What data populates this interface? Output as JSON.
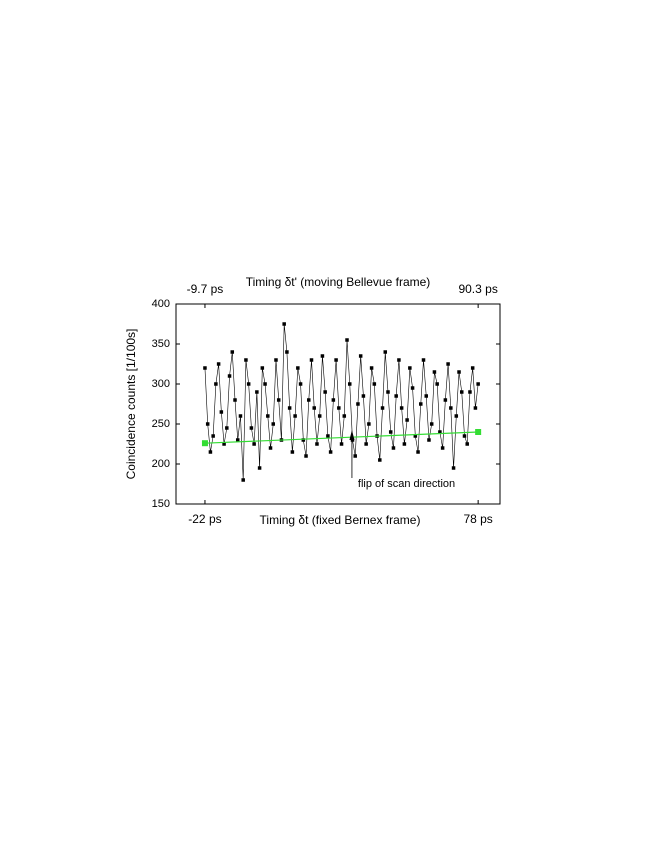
{
  "chart_data": {
    "type": "line",
    "title": "Timing δt' (moving Bellevue frame)",
    "xlabel": "Timing δt (fixed Bernex frame)",
    "ylabel": "Coincidence counts [1/100s]",
    "annotation": "flip of scan direction",
    "annotation_x": 31.8,
    "xlim": [
      -32.6,
      86
    ],
    "xticks": [
      {
        "value": -22,
        "label": "-22 ps"
      },
      {
        "value": 78,
        "label": "78 ps"
      }
    ],
    "x2ticks": [
      {
        "value": -22,
        "label": "-9.7 ps"
      },
      {
        "value": 78,
        "label": "90.3 ps"
      }
    ],
    "ylim": [
      150,
      400
    ],
    "yticks": [
      150,
      200,
      250,
      300,
      350,
      400
    ],
    "series": [
      {
        "color": "#000000",
        "marker": "square",
        "x": [
          -22,
          -21,
          -20,
          -19,
          -18,
          -17,
          -16,
          -15,
          -14,
          -13,
          -12,
          -11,
          -10,
          -9,
          -8,
          -7,
          -6,
          -5,
          -4,
          -3,
          -2,
          -1,
          0,
          1,
          2,
          3,
          4,
          5,
          6,
          7,
          8,
          9,
          10,
          11,
          12,
          13,
          14,
          15,
          16,
          17,
          18,
          19,
          20,
          21,
          22,
          23,
          24,
          25,
          26,
          27,
          28,
          29,
          30,
          31,
          32,
          33,
          34,
          35,
          36,
          37,
          38,
          39,
          40,
          41,
          42,
          43,
          44,
          45,
          46,
          47,
          48,
          49,
          50,
          51,
          52,
          53,
          54,
          55,
          56,
          57,
          58,
          59,
          60,
          61,
          62,
          63,
          64,
          65,
          66,
          67,
          68,
          69,
          70,
          71,
          72,
          73,
          74,
          75,
          76,
          77,
          78
        ],
        "values": [
          320,
          250,
          215,
          235,
          300,
          325,
          265,
          225,
          245,
          310,
          340,
          280,
          230,
          260,
          180,
          330,
          300,
          245,
          225,
          290,
          195,
          320,
          300,
          260,
          220,
          250,
          330,
          280,
          230,
          375,
          340,
          270,
          215,
          260,
          320,
          300,
          230,
          210,
          280,
          330,
          270,
          225,
          260,
          335,
          290,
          235,
          215,
          280,
          330,
          270,
          225,
          260,
          355,
          300,
          230,
          210,
          275,
          335,
          285,
          225,
          250,
          320,
          300,
          235,
          205,
          270,
          340,
          290,
          240,
          220,
          285,
          330,
          270,
          225,
          255,
          320,
          295,
          235,
          215,
          275,
          330,
          285,
          230,
          250,
          315,
          300,
          240,
          220,
          280,
          325,
          270,
          195,
          260,
          315,
          290,
          235,
          225,
          290,
          320,
          270,
          300
        ]
      },
      {
        "color": "#33dd33",
        "marker": "square",
        "x": [
          -22,
          78
        ],
        "values": [
          226,
          240
        ]
      }
    ]
  }
}
